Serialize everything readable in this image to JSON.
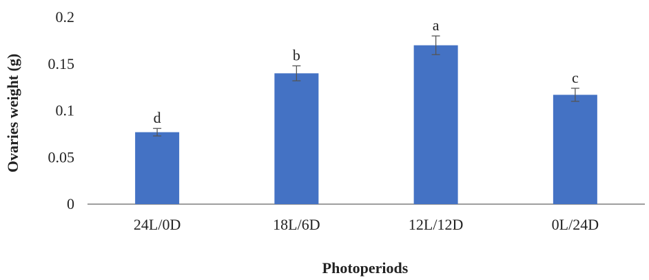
{
  "chart_data": {
    "type": "bar",
    "title": "",
    "xlabel": "Photoperiods",
    "ylabel": "Ovaries weight (g)",
    "ylim": [
      0,
      0.2
    ],
    "yticks": [
      "0",
      "0.05",
      "0.1",
      "0.15",
      "0.2"
    ],
    "categories": [
      "24L/0D",
      "18L/6D",
      "12L/12D",
      "0L/24D"
    ],
    "values": [
      0.077,
      0.14,
      0.17,
      0.117
    ],
    "errors": [
      0.004,
      0.008,
      0.01,
      0.007
    ],
    "significance_letters": [
      "d",
      "b",
      "a",
      "c"
    ],
    "grid": false,
    "legend": "none",
    "bar_color": "#4472C4",
    "error_bar_color": "#555555",
    "axis_color": "#7f7f7f"
  }
}
